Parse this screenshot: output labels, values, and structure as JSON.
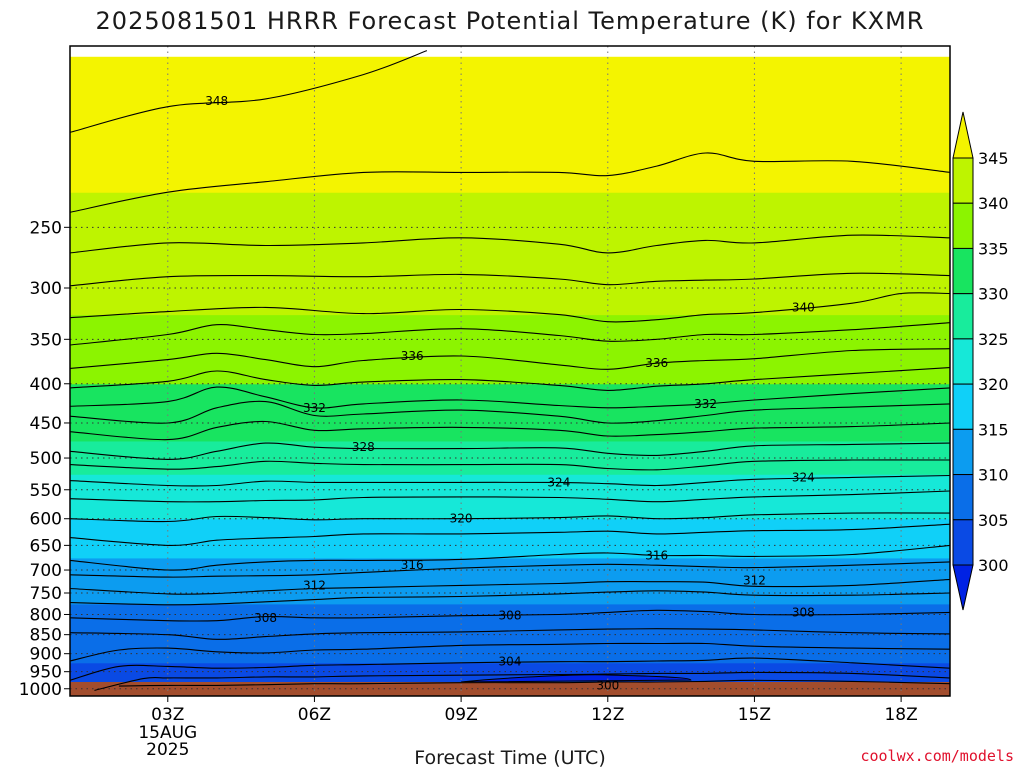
{
  "chart_data": {
    "type": "contour",
    "title": "2025081501 HRRR Forecast Potential Temperature (K) for KXMR",
    "xlabel": "Forecast Time (UTC)",
    "ylabel": "",
    "credit": "coolwx.com/models",
    "x_ticks": [
      {
        "label": "03Z",
        "sub": [
          "15AUG",
          "2025"
        ]
      },
      {
        "label": "06Z",
        "sub": []
      },
      {
        "label": "09Z",
        "sub": []
      },
      {
        "label": "12Z",
        "sub": []
      },
      {
        "label": "15Z",
        "sub": []
      },
      {
        "label": "18Z",
        "sub": []
      }
    ],
    "x_tick_hours": [
      3,
      6,
      9,
      12,
      15,
      18
    ],
    "xlim": [
      1,
      19
    ],
    "y_axis": "pressure (hPa), log scale, inverted",
    "ylim": [
      1022,
      145
    ],
    "y_ticks": [
      250,
      300,
      350,
      400,
      450,
      500,
      550,
      600,
      650,
      700,
      750,
      800,
      850,
      900,
      950,
      1000
    ],
    "grid": "dotted",
    "colorbar": {
      "labels": [
        "345",
        "340",
        "335",
        "330",
        "325",
        "320",
        "315",
        "310",
        "305",
        "300"
      ],
      "levels": [
        345,
        340,
        335,
        330,
        325,
        320,
        315,
        310,
        305,
        300
      ],
      "colors": [
        "#f4f400",
        "#bef400",
        "#8cf400",
        "#18e460",
        "#18ec9c",
        "#16e8d8",
        "#10d0f8",
        "#0c9cf0",
        "#0a6ee8",
        "#0a4ae4",
        "#0022e4"
      ],
      "extend": "both"
    },
    "fill_profile": {
      "description": "Potential temperature (K) vs pressure (hPa) at the first forecast hour",
      "pressure": [
        1000,
        975,
        950,
        925,
        900,
        875,
        850,
        825,
        800,
        775,
        750,
        725,
        700,
        675,
        650,
        625,
        600,
        575,
        550,
        525,
        500,
        475,
        450,
        425,
        400,
        375,
        350,
        325,
        300,
        275,
        250,
        225,
        200,
        175,
        150
      ],
      "theta": [
        302,
        302.8,
        303.8,
        304.8,
        305.5,
        306.5,
        307.5,
        308.3,
        309,
        310.5,
        311.7,
        313,
        314.3,
        315.5,
        316.8,
        318,
        319.5,
        321,
        323,
        325,
        327.2,
        329,
        331,
        332.8,
        334.6,
        336.2,
        337.8,
        339.5,
        341,
        342.5,
        344,
        345.5,
        347,
        348.5,
        350
      ]
    },
    "contour_levels": [
      302,
      304,
      306,
      308,
      310,
      312,
      314,
      316,
      318,
      320,
      322,
      324,
      326,
      328,
      330,
      332,
      334,
      336,
      338,
      340,
      342,
      344,
      346,
      348
    ],
    "contours": [
      {
        "level": 348,
        "x": [
          1,
          3,
          5,
          7,
          8.3
        ],
        "p": [
          188,
          174,
          170,
          158,
          147
        ]
      },
      {
        "level": 346,
        "x": [
          1,
          3,
          5,
          7,
          9,
          11,
          12,
          13,
          14,
          15,
          17,
          19
        ],
        "p": [
          239,
          225,
          218,
          212,
          212,
          212,
          214,
          208,
          200,
          205,
          205,
          212
        ]
      },
      {
        "level": 344,
        "x": [
          1,
          3,
          5,
          7,
          9,
          11,
          12,
          13,
          14,
          15,
          17,
          19
        ],
        "p": [
          270,
          262,
          264,
          262,
          258,
          263,
          270,
          264,
          260,
          262,
          256,
          258
        ]
      },
      {
        "level": 342,
        "x": [
          1,
          3,
          5,
          7,
          9,
          11,
          12,
          13,
          14,
          15,
          17,
          19
        ],
        "p": [
          298,
          290,
          289,
          290,
          288,
          292,
          297,
          294,
          293,
          292,
          287,
          289
        ]
      },
      {
        "level": 340,
        "x": [
          1,
          3,
          5,
          7,
          9,
          11,
          12,
          13,
          14,
          15,
          17,
          18,
          19
        ],
        "p": [
          328,
          322,
          318,
          324,
          320,
          325,
          332,
          330,
          325,
          323,
          314,
          305,
          305
        ]
      },
      {
        "level": 338,
        "x": [
          1,
          3,
          4,
          5,
          6,
          7,
          9,
          11,
          12,
          13,
          14,
          15,
          17,
          19
        ],
        "p": [
          356,
          345,
          335,
          340,
          345,
          344,
          339,
          346,
          352,
          350,
          345,
          345,
          340,
          333
        ]
      },
      {
        "level": 336,
        "x": [
          1,
          3,
          4,
          5,
          6,
          7,
          9,
          11,
          12,
          13,
          14,
          15,
          17,
          19
        ],
        "p": [
          382,
          372,
          365,
          372,
          380,
          373,
          368,
          378,
          383,
          376,
          373,
          371,
          362,
          360
        ]
      },
      {
        "level": 334,
        "x": [
          1,
          3,
          4,
          5,
          6,
          7,
          9,
          11,
          12,
          13,
          14,
          15,
          17,
          19
        ],
        "p": [
          405,
          397,
          385,
          395,
          402,
          398,
          395,
          402,
          408,
          403,
          400,
          395,
          388,
          381
        ]
      },
      {
        "level": 332,
        "x": [
          1,
          3,
          4,
          5,
          6,
          7,
          9,
          11,
          12,
          13,
          14,
          15,
          17,
          19
        ],
        "p": [
          428,
          422,
          404,
          416,
          430,
          425,
          420,
          427,
          430,
          428,
          425,
          420,
          412,
          405
        ]
      },
      {
        "level": 330,
        "x": [
          1,
          3,
          4,
          5,
          6,
          7,
          9,
          11,
          12,
          13,
          14,
          15,
          17,
          19
        ],
        "p": [
          441,
          450,
          430,
          422,
          440,
          438,
          433,
          441,
          450,
          447,
          440,
          433,
          429,
          425
        ]
      },
      {
        "level": 328,
        "x": [
          1,
          3,
          4,
          5,
          6,
          7,
          9,
          11,
          12,
          13,
          14,
          15,
          17,
          19
        ],
        "p": [
          462,
          473,
          456,
          448,
          460,
          458,
          456,
          460,
          468,
          466,
          462,
          457,
          455,
          450
        ]
      },
      {
        "level": 326,
        "x": [
          1,
          3,
          4,
          5,
          6,
          7,
          9,
          11,
          12,
          13,
          14,
          15,
          17,
          19
        ],
        "p": [
          490,
          502,
          490,
          478,
          484,
          486,
          486,
          485,
          493,
          496,
          490,
          482,
          480,
          478
        ]
      },
      {
        "level": 324,
        "x": [
          1,
          3,
          4,
          5,
          6,
          7,
          9,
          11,
          12,
          13,
          14,
          15,
          17,
          19
        ],
        "p": [
          510,
          517,
          513,
          505,
          508,
          510,
          510,
          510,
          516,
          518,
          512,
          505,
          503,
          503
        ]
      },
      {
        "level": 322,
        "x": [
          1,
          3,
          4,
          5,
          6,
          7,
          9,
          11,
          12,
          13,
          14,
          15,
          17,
          19
        ],
        "p": [
          535,
          543,
          543,
          536,
          538,
          538,
          538,
          538,
          540,
          543,
          538,
          533,
          530,
          527
        ]
      },
      {
        "level": 320,
        "x": [
          1,
          3,
          4,
          5,
          6,
          7,
          9,
          11,
          12,
          13,
          14,
          15,
          17,
          19
        ],
        "p": [
          565,
          570,
          570,
          568,
          567,
          563,
          562,
          563,
          566,
          570,
          566,
          562,
          558,
          552
        ]
      },
      {
        "level": 318,
        "x": [
          1,
          3,
          4,
          5,
          6,
          7,
          9,
          11,
          12,
          13,
          14,
          15,
          17,
          19
        ],
        "p": [
          600,
          605,
          596,
          598,
          602,
          600,
          600,
          598,
          595,
          600,
          598,
          593,
          590,
          590
        ]
      },
      {
        "level": 316,
        "x": [
          1,
          3,
          4,
          5,
          6,
          7,
          9,
          11,
          12,
          13,
          14,
          15,
          17,
          19
        ],
        "p": [
          635,
          650,
          640,
          636,
          633,
          628,
          628,
          625,
          623,
          628,
          625,
          622,
          620,
          610
        ]
      },
      {
        "level": 314,
        "x": [
          1,
          3,
          4,
          5,
          6,
          7,
          9,
          11,
          12,
          13,
          14,
          15,
          17,
          19
        ],
        "p": [
          680,
          700,
          690,
          683,
          680,
          680,
          678,
          668,
          665,
          670,
          670,
          672,
          668,
          650
        ]
      },
      {
        "level": 312,
        "x": [
          1,
          3,
          4,
          5,
          6,
          7,
          9,
          11,
          12,
          13,
          14,
          15,
          17,
          19
        ],
        "p": [
          710,
          715,
          713,
          712,
          710,
          705,
          696,
          690,
          688,
          690,
          693,
          695,
          690,
          683
        ]
      },
      {
        "level": 310,
        "x": [
          1,
          3,
          4,
          5,
          6,
          7,
          9,
          11,
          12,
          13,
          14,
          15,
          17,
          19
        ],
        "p": [
          740,
          752,
          751,
          745,
          740,
          738,
          733,
          729,
          725,
          725,
          726,
          735,
          733,
          720
        ]
      },
      {
        "level": 308,
        "x": [
          1,
          3,
          4,
          5,
          6,
          7,
          9,
          11,
          12,
          13,
          14,
          15,
          17,
          19
        ],
        "p": [
          772,
          777,
          775,
          770,
          765,
          760,
          758,
          752,
          748,
          745,
          748,
          755,
          755,
          750
        ]
      },
      {
        "level": 306,
        "x": [
          1,
          3,
          4,
          5,
          6,
          7,
          9,
          11,
          12,
          13,
          14,
          15,
          17,
          19
        ],
        "p": [
          808,
          815,
          815,
          805,
          808,
          808,
          803,
          800,
          795,
          790,
          793,
          800,
          800,
          795
        ]
      },
      {
        "level": 304,
        "x": [
          1,
          3,
          4,
          5,
          6,
          7,
          9,
          11,
          12,
          13,
          14,
          15,
          17,
          19
        ],
        "p": [
          845,
          850,
          862,
          855,
          848,
          845,
          843,
          838,
          836,
          835,
          836,
          838,
          845,
          848
        ]
      },
      {
        "level": 302,
        "x": [
          1,
          2,
          3,
          4,
          5,
          6,
          7,
          9,
          11,
          12,
          13,
          14,
          15,
          17,
          19
        ],
        "p": [
          920,
          890,
          885,
          895,
          898,
          890,
          888,
          878,
          875,
          873,
          873,
          873,
          880,
          885,
          888
        ]
      },
      {
        "level": 300,
        "x": [
          1,
          2,
          3,
          4,
          5,
          6,
          7,
          9,
          11,
          12,
          13,
          14,
          15,
          17,
          19
        ],
        "p": [
          975,
          935,
          935,
          940,
          938,
          932,
          930,
          925,
          922,
          922,
          920,
          918,
          912,
          925,
          940
        ]
      },
      {
        "level": 298,
        "x": [
          1.5,
          2.5,
          3,
          4,
          5,
          6,
          7,
          9,
          11,
          12,
          13,
          14,
          15,
          17,
          19
        ],
        "p": [
          1005,
          970,
          968,
          968,
          965,
          965,
          962,
          960,
          958,
          957,
          955,
          955,
          952,
          955,
          968
        ]
      },
      {
        "level": 296,
        "x": [
          2,
          3,
          4,
          5,
          6,
          7,
          9,
          11,
          12,
          13,
          14,
          15,
          17,
          19
        ],
        "p": [
          992,
          990,
          990,
          988,
          985,
          985,
          982,
          982,
          980,
          980,
          978,
          975,
          978,
          985
        ]
      }
    ],
    "contour_labels": [
      {
        "text": "348",
        "x": 4,
        "p": 171
      },
      {
        "text": "340",
        "x": 16,
        "p": 318
      },
      {
        "text": "336",
        "x": 8,
        "p": 368
      },
      {
        "text": "336",
        "x": 13,
        "p": 376
      },
      {
        "text": "332",
        "x": 6,
        "p": 430
      },
      {
        "text": "332",
        "x": 14,
        "p": 425
      },
      {
        "text": "328",
        "x": 7,
        "p": 484
      },
      {
        "text": "324",
        "x": 11,
        "p": 538
      },
      {
        "text": "324",
        "x": 16,
        "p": 530
      },
      {
        "text": "320",
        "x": 9,
        "p": 600
      },
      {
        "text": "316",
        "x": 8,
        "p": 690
      },
      {
        "text": "316",
        "x": 13,
        "p": 670
      },
      {
        "text": "312",
        "x": 6,
        "p": 733
      },
      {
        "text": "312",
        "x": 15,
        "p": 722
      },
      {
        "text": "308",
        "x": 5,
        "p": 808
      },
      {
        "text": "308",
        "x": 10,
        "p": 803
      },
      {
        "text": "308",
        "x": 16,
        "p": 795
      },
      {
        "text": "304",
        "x": 10,
        "p": 922
      },
      {
        "text": "300",
        "x": 12,
        "p": 990
      }
    ],
    "cold_pocket": {
      "label": "300",
      "x_start": 9,
      "x_peak": 12,
      "x_end": 13.7
    }
  }
}
